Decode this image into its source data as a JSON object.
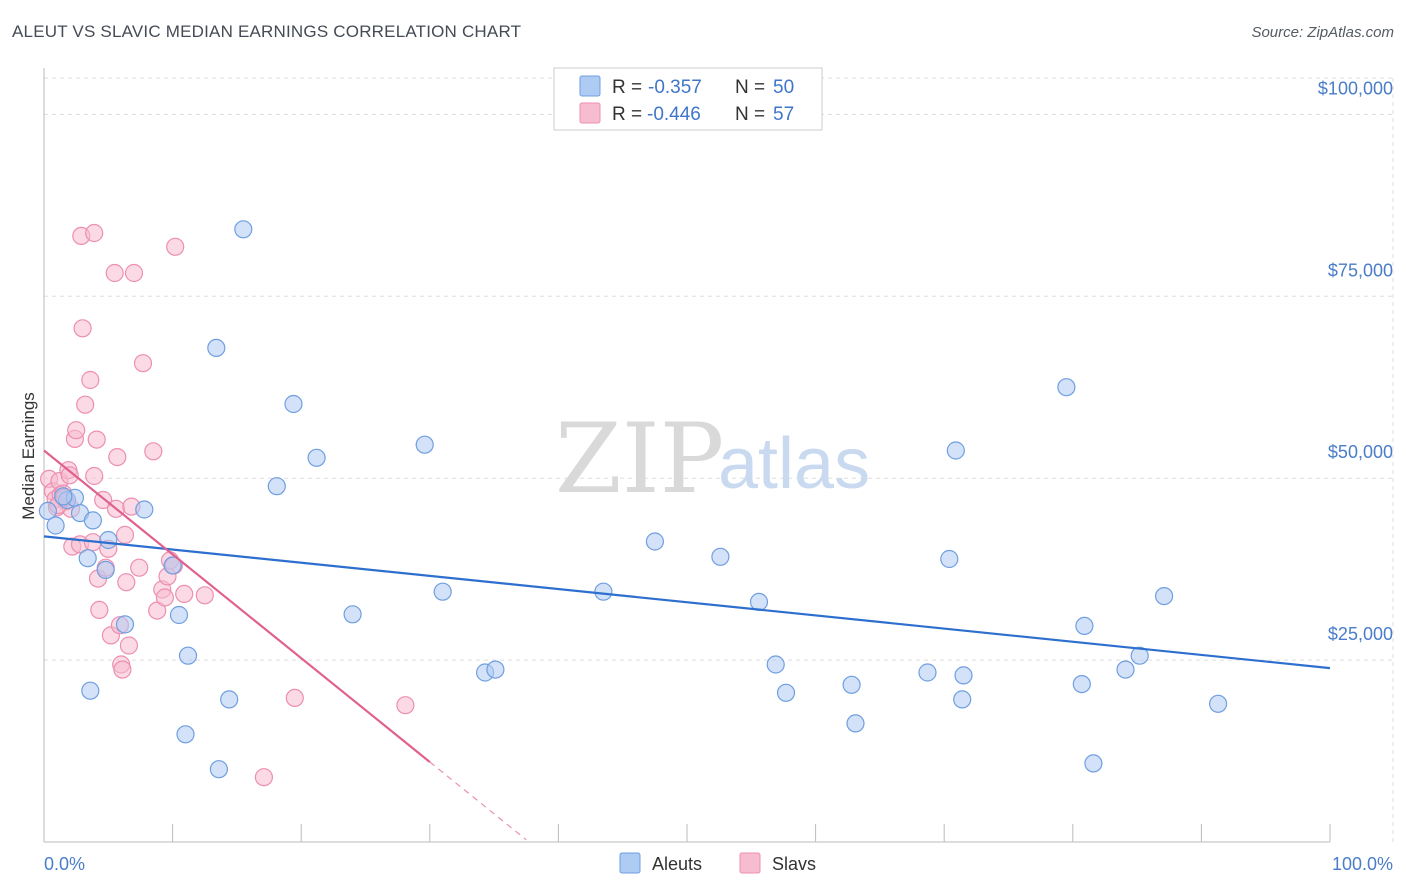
{
  "title": "ALEUT VS SLAVIC MEDIAN EARNINGS CORRELATION CHART",
  "source": "Source: ZipAtlas.com",
  "watermark": {
    "zip": "ZIP",
    "atlas": "atlas"
  },
  "colors": {
    "aleuts_fill": "#aecbf3",
    "aleuts_stroke": "#6f9fe0",
    "aleuts_line": "#2d6fcf",
    "slavs_fill": "#f7bcd0",
    "slavs_stroke": "#ec8fb0",
    "slavs_line": "#e0618f",
    "tick_label": "#4a7dc9",
    "grid": "#dddddd"
  },
  "legend": {
    "rows": [
      {
        "r_label": "R =",
        "r_value": "-0.357",
        "n_label": "N =",
        "n_value": "50"
      },
      {
        "r_label": "R =",
        "r_value": "-0.446",
        "n_label": "N =",
        "n_value": "57"
      }
    ]
  },
  "chart_data": {
    "type": "scatter",
    "title": "ALEUT VS SLAVIC MEDIAN EARNINGS CORRELATION CHART",
    "xlabel": "",
    "ylabel": "Median Earnings",
    "xlim": [
      0,
      100
    ],
    "ylim": [
      0,
      105000
    ],
    "x_tick_labels": [
      "0.0%",
      "100.0%"
    ],
    "y_ticks": [
      25000,
      50000,
      75000,
      100000
    ],
    "y_tick_labels": [
      "$25,000",
      "$50,000",
      "$75,000",
      "$100,000"
    ],
    "grid": true,
    "legend_position": "top-center",
    "series": [
      {
        "name": "Aleuts",
        "points": [
          [
            0.3,
            45500
          ],
          [
            0.9,
            43500
          ],
          [
            1.8,
            47000
          ],
          [
            2.4,
            47300
          ],
          [
            2.8,
            45200
          ],
          [
            3.4,
            39000
          ],
          [
            3.8,
            44200
          ],
          [
            5.0,
            41500
          ],
          [
            3.6,
            20800
          ],
          [
            6.3,
            29900
          ],
          [
            4.8,
            37400
          ],
          [
            7.8,
            45700
          ],
          [
            10.0,
            38000
          ],
          [
            10.5,
            31200
          ],
          [
            11.0,
            14800
          ],
          [
            11.2,
            25600
          ],
          [
            13.4,
            67900
          ],
          [
            13.6,
            10000
          ],
          [
            14.4,
            19600
          ],
          [
            15.5,
            84200
          ],
          [
            18.1,
            48900
          ],
          [
            19.4,
            60200
          ],
          [
            21.2,
            52800
          ],
          [
            24.0,
            31300
          ],
          [
            29.6,
            54600
          ],
          [
            31.0,
            34400
          ],
          [
            34.3,
            23300
          ],
          [
            35.1,
            23700
          ],
          [
            43.5,
            34400
          ],
          [
            47.5,
            41300
          ],
          [
            52.6,
            39200
          ],
          [
            55.6,
            33000
          ],
          [
            56.9,
            24400
          ],
          [
            57.7,
            20500
          ],
          [
            62.8,
            21600
          ],
          [
            63.1,
            16300
          ],
          [
            68.7,
            23300
          ],
          [
            70.4,
            38900
          ],
          [
            70.9,
            53800
          ],
          [
            71.4,
            19600
          ],
          [
            71.5,
            22900
          ],
          [
            79.5,
            62500
          ],
          [
            80.7,
            21700
          ],
          [
            80.9,
            29700
          ],
          [
            81.6,
            10800
          ],
          [
            84.1,
            23700
          ],
          [
            85.2,
            25600
          ],
          [
            87.1,
            33800
          ],
          [
            91.3,
            19000
          ],
          [
            1.5,
            47500
          ]
        ]
      },
      {
        "name": "Slavs",
        "points": [
          [
            0.4,
            49900
          ],
          [
            0.7,
            48200
          ],
          [
            0.9,
            47100
          ],
          [
            1.0,
            46000
          ],
          [
            1.2,
            49600
          ],
          [
            1.3,
            47700
          ],
          [
            1.5,
            47900
          ],
          [
            1.7,
            46800
          ],
          [
            1.9,
            51100
          ],
          [
            2.0,
            50400
          ],
          [
            2.1,
            45800
          ],
          [
            2.2,
            40600
          ],
          [
            2.4,
            55400
          ],
          [
            2.5,
            56600
          ],
          [
            2.8,
            40900
          ],
          [
            2.9,
            83300
          ],
          [
            3.0,
            70600
          ],
          [
            3.2,
            60100
          ],
          [
            3.6,
            63500
          ],
          [
            3.8,
            41200
          ],
          [
            3.9,
            50300
          ],
          [
            4.1,
            55300
          ],
          [
            4.2,
            36200
          ],
          [
            4.3,
            31900
          ],
          [
            4.6,
            47000
          ],
          [
            4.8,
            37700
          ],
          [
            5.0,
            40300
          ],
          [
            5.2,
            28400
          ],
          [
            5.5,
            78200
          ],
          [
            5.6,
            45800
          ],
          [
            5.7,
            52900
          ],
          [
            5.9,
            29800
          ],
          [
            6.0,
            24400
          ],
          [
            6.1,
            23700
          ],
          [
            6.3,
            42200
          ],
          [
            6.4,
            35700
          ],
          [
            6.6,
            27000
          ],
          [
            6.8,
            46100
          ],
          [
            7.0,
            78200
          ],
          [
            7.4,
            37700
          ],
          [
            7.7,
            65800
          ],
          [
            8.5,
            53700
          ],
          [
            8.8,
            31800
          ],
          [
            9.2,
            34700
          ],
          [
            9.4,
            33600
          ],
          [
            9.6,
            36500
          ],
          [
            9.8,
            38700
          ],
          [
            10.1,
            38000
          ],
          [
            10.2,
            81800
          ],
          [
            10.9,
            34100
          ],
          [
            12.5,
            33900
          ],
          [
            17.1,
            8900
          ],
          [
            19.5,
            19800
          ],
          [
            28.1,
            18800
          ],
          [
            3.9,
            83700
          ],
          [
            1.1,
            46300
          ],
          [
            1.6,
            47300
          ]
        ]
      }
    ],
    "trend_lines": [
      {
        "series": "Aleuts",
        "x": [
          0,
          100
        ],
        "y": [
          42000,
          23900
        ]
      },
      {
        "series": "Slavs",
        "x": [
          0,
          30
        ],
        "y": [
          53800,
          11000
        ],
        "dashed_extension_to_x": 37.5
      }
    ]
  },
  "bottom_legend": {
    "items": [
      "Aleuts",
      "Slavs"
    ]
  }
}
